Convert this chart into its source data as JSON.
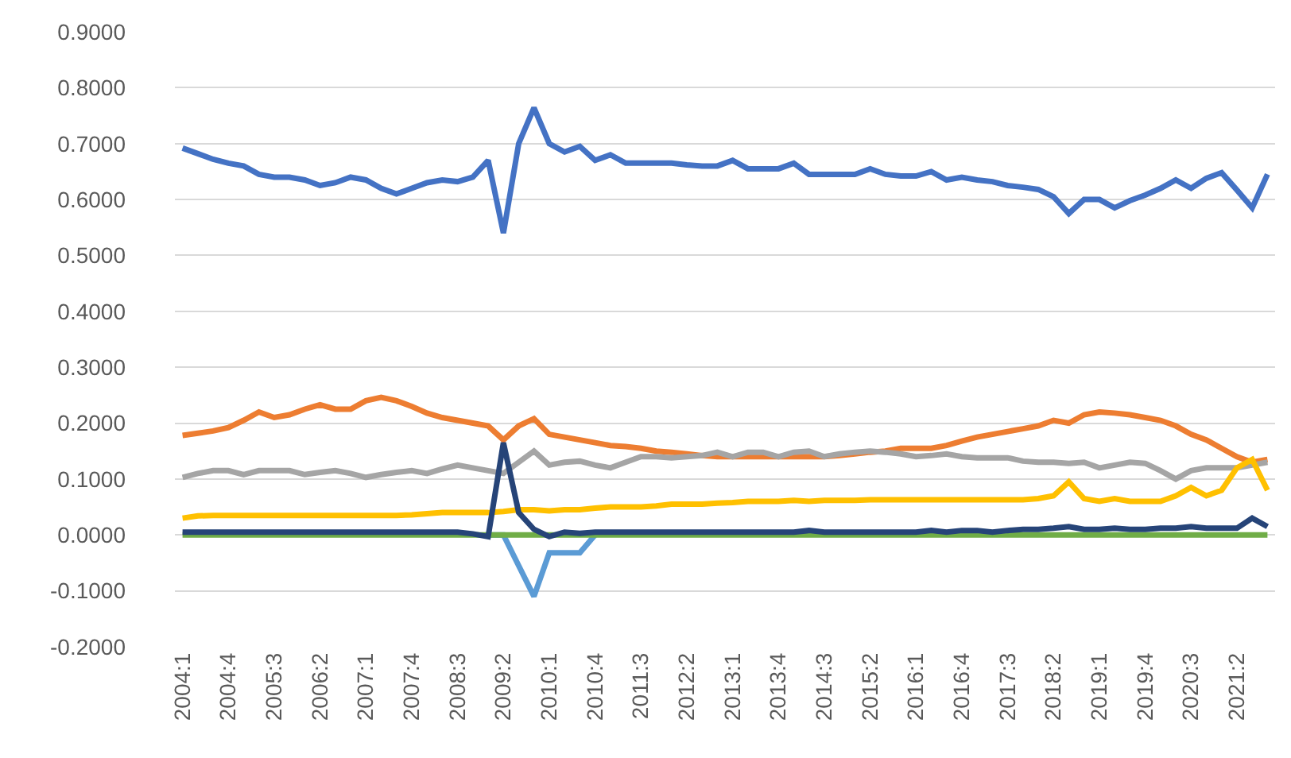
{
  "chart_data": {
    "type": "line",
    "categories": [
      "2004:1",
      null,
      null,
      "2004:4",
      null,
      null,
      "2005:3",
      null,
      null,
      "2006:2",
      null,
      null,
      "2007:1",
      null,
      null,
      "2007:4",
      null,
      null,
      "2008:3",
      null,
      null,
      "2009:2",
      null,
      null,
      "2010:1",
      null,
      null,
      "2010:4",
      null,
      null,
      "2011:3",
      null,
      null,
      "2012:2",
      null,
      null,
      "2013:1",
      null,
      null,
      "2013:4",
      null,
      null,
      "2014:3",
      null,
      null,
      "2015:2",
      null,
      null,
      "2016:1",
      null,
      null,
      "2016:4",
      null,
      null,
      "2017:3",
      null,
      null,
      "2018:2",
      null,
      null,
      "2019:1",
      null,
      null,
      "2019:4",
      null,
      null,
      "2020:3",
      null,
      null,
      "2021:2",
      null,
      null
    ],
    "series": [
      {
        "color": "#4472c4",
        "values": [
          0.692,
          0.682,
          0.672,
          0.665,
          0.66,
          0.645,
          0.64,
          0.64,
          0.635,
          0.625,
          0.63,
          0.64,
          0.635,
          0.62,
          0.61,
          0.62,
          0.63,
          0.635,
          0.632,
          0.64,
          0.67,
          0.54,
          0.7,
          0.764,
          0.7,
          0.685,
          0.695,
          0.67,
          0.68,
          0.665,
          0.665,
          0.665,
          0.665,
          0.662,
          0.66,
          0.66,
          0.67,
          0.655,
          0.655,
          0.655,
          0.665,
          0.645,
          0.645,
          0.645,
          0.645,
          0.655,
          0.645,
          0.642,
          0.642,
          0.65,
          0.635,
          0.64,
          0.635,
          0.632,
          0.625,
          0.622,
          0.618,
          0.605,
          0.575,
          0.6,
          0.6,
          0.585,
          0.598,
          0.608,
          0.62,
          0.635,
          0.62,
          0.638,
          0.648,
          0.617,
          0.585,
          0.645
        ]
      },
      {
        "color": "#ed7d31",
        "values": [
          0.178,
          0.182,
          0.186,
          0.192,
          0.205,
          0.22,
          0.21,
          0.215,
          0.225,
          0.233,
          0.225,
          0.225,
          0.24,
          0.246,
          0.24,
          0.23,
          0.218,
          0.21,
          0.205,
          0.2,
          0.195,
          0.17,
          0.195,
          0.208,
          0.18,
          0.175,
          0.17,
          0.165,
          0.16,
          0.158,
          0.155,
          0.15,
          0.148,
          0.145,
          0.142,
          0.14,
          0.14,
          0.14,
          0.14,
          0.14,
          0.14,
          0.14,
          0.14,
          0.142,
          0.145,
          0.148,
          0.15,
          0.155,
          0.155,
          0.155,
          0.16,
          0.168,
          0.175,
          0.18,
          0.185,
          0.19,
          0.195,
          0.205,
          0.2,
          0.215,
          0.22,
          0.218,
          0.215,
          0.21,
          0.205,
          0.195,
          0.18,
          0.17,
          0.155,
          0.14,
          0.13,
          0.135
        ]
      },
      {
        "color": "#a5a5a5",
        "values": [
          0.103,
          0.11,
          0.115,
          0.115,
          0.108,
          0.115,
          0.115,
          0.115,
          0.108,
          0.112,
          0.115,
          0.11,
          0.103,
          0.108,
          0.112,
          0.115,
          0.11,
          0.118,
          0.125,
          0.12,
          0.115,
          0.11,
          0.13,
          0.15,
          0.125,
          0.13,
          0.132,
          0.125,
          0.12,
          0.13,
          0.14,
          0.14,
          0.138,
          0.14,
          0.142,
          0.148,
          0.14,
          0.148,
          0.148,
          0.14,
          0.148,
          0.15,
          0.14,
          0.145,
          0.148,
          0.15,
          0.148,
          0.145,
          0.14,
          0.142,
          0.145,
          0.14,
          0.138,
          0.138,
          0.138,
          0.132,
          0.13,
          0.13,
          0.128,
          0.13,
          0.12,
          0.125,
          0.13,
          0.128,
          0.115,
          0.1,
          0.115,
          0.12,
          0.12,
          0.12,
          0.125,
          0.13
        ]
      },
      {
        "color": "#ffc000",
        "values": [
          0.03,
          0.034,
          0.035,
          0.035,
          0.035,
          0.035,
          0.035,
          0.035,
          0.035,
          0.035,
          0.035,
          0.035,
          0.035,
          0.035,
          0.035,
          0.036,
          0.038,
          0.04,
          0.04,
          0.04,
          0.04,
          0.042,
          0.045,
          0.045,
          0.043,
          0.045,
          0.045,
          0.048,
          0.05,
          0.05,
          0.05,
          0.052,
          0.055,
          0.055,
          0.055,
          0.057,
          0.058,
          0.06,
          0.06,
          0.06,
          0.062,
          0.06,
          0.062,
          0.062,
          0.062,
          0.063,
          0.063,
          0.063,
          0.063,
          0.063,
          0.063,
          0.063,
          0.063,
          0.063,
          0.063,
          0.063,
          0.065,
          0.07,
          0.095,
          0.065,
          0.06,
          0.065,
          0.06,
          0.06,
          0.06,
          0.07,
          0.085,
          0.07,
          0.08,
          0.12,
          0.135,
          0.08
        ]
      },
      {
        "color": "#5b9bd5",
        "values": [
          null,
          null,
          null,
          null,
          null,
          null,
          null,
          null,
          null,
          null,
          null,
          null,
          null,
          null,
          null,
          null,
          null,
          null,
          null,
          null,
          0,
          0,
          -0.055,
          -0.11,
          -0.032,
          -0.032,
          -0.032,
          0,
          null,
          null,
          null,
          null,
          null,
          null,
          null,
          null,
          null,
          null,
          null,
          null,
          null,
          null,
          null,
          null,
          null,
          null,
          null,
          null,
          null,
          null,
          null,
          null,
          null,
          null,
          null,
          null,
          null,
          null,
          null,
          null,
          null,
          null,
          null,
          null,
          null,
          null,
          null,
          null,
          null,
          null,
          null,
          null
        ]
      },
      {
        "color": "#70ad47",
        "values": [
          0,
          0,
          0,
          0,
          0,
          0,
          0,
          0,
          0,
          0,
          0,
          0,
          0,
          0,
          0,
          0,
          0,
          0,
          0,
          0,
          0,
          0,
          0,
          0,
          0,
          0,
          0,
          0,
          0,
          0,
          0,
          0,
          0,
          0,
          0,
          0,
          0,
          0,
          0,
          0,
          0,
          0,
          0,
          0,
          0,
          0,
          0,
          0,
          0,
          0,
          0,
          0,
          0,
          0,
          0,
          0,
          0,
          0,
          0,
          0,
          0,
          0,
          0,
          0,
          0,
          0,
          0,
          0,
          0,
          0,
          0,
          0
        ]
      },
      {
        "color": "#264478",
        "values": [
          0.005,
          0.005,
          0.005,
          0.005,
          0.005,
          0.005,
          0.005,
          0.005,
          0.005,
          0.005,
          0.005,
          0.005,
          0.005,
          0.005,
          0.005,
          0.005,
          0.005,
          0.005,
          0.005,
          0.002,
          -0.003,
          0.165,
          0.04,
          0.01,
          -0.003,
          0.005,
          0.003,
          0.005,
          0.005,
          0.005,
          0.005,
          0.005,
          0.005,
          0.005,
          0.005,
          0.005,
          0.005,
          0.005,
          0.005,
          0.005,
          0.005,
          0.008,
          0.005,
          0.005,
          0.005,
          0.005,
          0.005,
          0.005,
          0.005,
          0.008,
          0.005,
          0.008,
          0.008,
          0.005,
          0.008,
          0.01,
          0.01,
          0.012,
          0.015,
          0.01,
          0.01,
          0.012,
          0.01,
          0.01,
          0.012,
          0.012,
          0.015,
          0.012,
          0.012,
          0.012,
          0.03,
          0.015
        ]
      }
    ],
    "ylim": [
      -0.2,
      0.9
    ],
    "yticks": [
      {
        "value": -0.2,
        "label": "-0.2000"
      },
      {
        "value": -0.1,
        "label": "-0.1000"
      },
      {
        "value": 0,
        "label": "0.0000"
      },
      {
        "value": 0.1,
        "label": "0.1000"
      },
      {
        "value": 0.2,
        "label": "0.2000"
      },
      {
        "value": 0.3,
        "label": "0.3000"
      },
      {
        "value": 0.4,
        "label": "0.4000"
      },
      {
        "value": 0.5,
        "label": "0.5000"
      },
      {
        "value": 0.6,
        "label": "0.6000"
      },
      {
        "value": 0.7,
        "label": "0.7000"
      },
      {
        "value": 0.8,
        "label": "0.8000"
      },
      {
        "value": 0.9,
        "label": "0.9000"
      }
    ],
    "grid": "y",
    "marker": "none",
    "line_style": "solid"
  }
}
